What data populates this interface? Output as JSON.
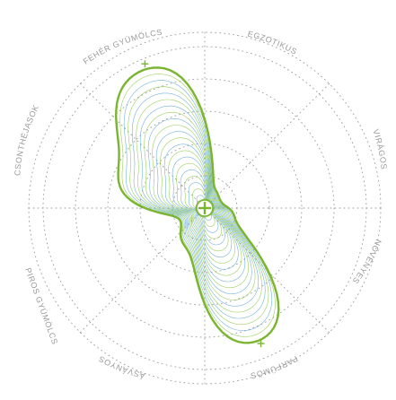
{
  "diagram": {
    "type": "aroma-wheel-radar",
    "colors": {
      "grid": "#9a9a9a",
      "label": "#9a9a9a",
      "primary_outline": "#7ab52f",
      "blue_lines": "#5aa6d6",
      "green_lines": "#8cc63f",
      "marker": "#7ab52f"
    },
    "axes": [
      {
        "key": "feher",
        "label": "FEHÉR GYÜMÖLCS",
        "value": 0.92
      },
      {
        "key": "egzotikus",
        "label": "EGZOTIKUS",
        "value": 0.12
      },
      {
        "key": "viragos",
        "label": "VIRÁGOS",
        "value": 0.1
      },
      {
        "key": "novenyes",
        "label": "NÖVÉNYES",
        "value": 0.18
      },
      {
        "key": "parfumos",
        "label": "PARFÜMÖS",
        "value": 0.88
      },
      {
        "key": "asvanyos",
        "label": "ÁSVÁNYOS",
        "value": 0.25
      },
      {
        "key": "piros",
        "label": "PIROS GYÜMÖLCS",
        "value": 0.15
      },
      {
        "key": "csonthejasok",
        "label": "CSONTHÉJASOK",
        "value": 0.55
      }
    ]
  }
}
